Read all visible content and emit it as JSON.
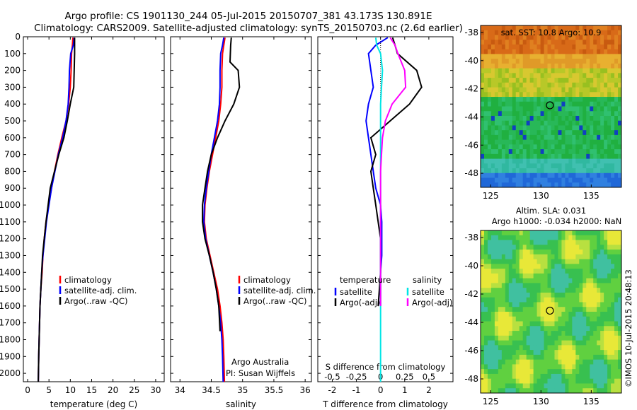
{
  "header": {
    "title_line1": "Argo profile: CS 1901130_244 05-Jul-2015 20150707_381 43.173S 130.891E",
    "title_line2": "Climatology: CARS2009. Satellite-adjusted climatology: synTS_20150703.nc (2.6d earlier)"
  },
  "credits": {
    "argo_line1": "Argo Australia",
    "argo_line2": "PI: Susan Wijffels",
    "imos": "©IMOS 10-Jul-2015 20:48:13"
  },
  "depth_ticks": [
    0,
    100,
    200,
    300,
    400,
    500,
    600,
    700,
    800,
    900,
    1000,
    1100,
    1200,
    1300,
    1400,
    1500,
    1600,
    1700,
    1800,
    1900,
    2000
  ],
  "colors": {
    "climatology": "#ff0000",
    "satellite": "#0000ff",
    "argo": "#000000",
    "cyan": "#00e5e5",
    "magenta": "#ff00ff"
  },
  "chart_data": [
    {
      "id": "temperature",
      "type": "line",
      "xlabel": "temperature (deg C)",
      "ylabel": "",
      "xlim": [
        -1,
        32
      ],
      "ylim": [
        2050,
        0
      ],
      "xticks": [
        0,
        5,
        10,
        15,
        20,
        25,
        30
      ],
      "legend": [
        "climatology",
        "satellite-adj. clim.",
        "Argo(..raw -QC)"
      ],
      "series": [
        {
          "name": "climatology",
          "color": "#ff0000",
          "x": [
            10.6,
            10.5,
            10.3,
            10.2,
            10.0,
            9.6,
            9.0,
            8.0,
            7.1,
            6.3,
            5.6,
            4.9,
            4.3,
            3.9,
            3.6,
            3.4,
            3.1,
            2.9,
            2.8,
            2.7,
            2.6,
            2.5
          ],
          "y": [
            5,
            50,
            100,
            200,
            300,
            400,
            500,
            600,
            700,
            800,
            900,
            1000,
            1100,
            1200,
            1300,
            1400,
            1500,
            1600,
            1700,
            1800,
            1900,
            2050
          ]
        },
        {
          "name": "satellite-adj. clim.",
          "color": "#0000ff",
          "x": [
            10.9,
            10.7,
            10.1,
            9.8,
            9.7,
            9.5,
            9.0,
            8.2,
            7.2,
            6.4,
            5.6,
            5.0,
            4.4,
            4.0,
            3.6,
            3.3,
            3.1,
            2.9,
            2.8,
            2.7,
            2.6,
            2.5
          ],
          "y": [
            5,
            50,
            100,
            200,
            300,
            400,
            500,
            600,
            700,
            800,
            900,
            1000,
            1100,
            1200,
            1300,
            1400,
            1500,
            1600,
            1700,
            1800,
            1900,
            2050
          ]
        },
        {
          "name": "Argo(..raw -QC)",
          "color": "#000000",
          "x": [
            11.0,
            11.0,
            11.0,
            10.9,
            10.8,
            10.0,
            9.3,
            8.5,
            7.3,
            6.3,
            5.3,
            4.8,
            4.3,
            3.9,
            3.5,
            3.3,
            3.1,
            2.9,
            2.8,
            2.7,
            2.6,
            2.5
          ],
          "y": [
            5,
            50,
            100,
            200,
            300,
            400,
            500,
            600,
            700,
            800,
            900,
            1000,
            1100,
            1200,
            1300,
            1400,
            1500,
            1600,
            1700,
            1800,
            1900,
            2050
          ]
        }
      ]
    },
    {
      "id": "salinity",
      "type": "line",
      "xlabel": "salinity",
      "ylabel": "",
      "xlim": [
        33.85,
        36.1
      ],
      "ylim": [
        2050,
        0
      ],
      "xticks": [
        34,
        34.5,
        35,
        35.5,
        36
      ],
      "legend": [
        "climatology",
        "satellite-adj. clim.",
        "Argo(..raw -QC)"
      ],
      "series": [
        {
          "name": "climatology",
          "color": "#ff0000",
          "x": [
            34.72,
            34.7,
            34.68,
            34.67,
            34.67,
            34.65,
            34.62,
            34.57,
            34.52,
            34.47,
            34.43,
            34.4,
            34.39,
            34.42,
            34.48,
            34.54,
            34.6,
            34.64,
            34.67,
            34.69,
            34.7,
            34.71
          ],
          "y": [
            5,
            50,
            100,
            200,
            300,
            400,
            500,
            600,
            700,
            800,
            900,
            1000,
            1100,
            1200,
            1300,
            1400,
            1500,
            1600,
            1700,
            1800,
            1900,
            2050
          ]
        },
        {
          "name": "satellite-adj. clim.",
          "color": "#0000ff",
          "x": [
            34.7,
            34.68,
            34.65,
            34.64,
            34.64,
            34.63,
            34.6,
            34.55,
            34.5,
            34.46,
            34.42,
            34.39,
            34.38,
            34.41,
            34.47,
            34.53,
            34.58,
            34.62,
            34.65,
            34.67,
            34.68,
            34.69
          ],
          "y": [
            5,
            50,
            100,
            200,
            300,
            400,
            500,
            600,
            700,
            800,
            900,
            1000,
            1100,
            1200,
            1300,
            1400,
            1500,
            1600,
            1700,
            1800,
            1900,
            2050
          ]
        },
        {
          "name": "Argo(..raw -QC)",
          "color": "#000000",
          "x": [
            34.82,
            34.81,
            34.8,
            34.93,
            34.95,
            34.86,
            34.72,
            34.6,
            34.5,
            34.44,
            34.4,
            34.36,
            34.36,
            34.4,
            34.47,
            34.53,
            34.58,
            34.62,
            34.64
          ],
          "y": [
            5,
            50,
            150,
            200,
            300,
            400,
            500,
            600,
            700,
            800,
            900,
            1000,
            1100,
            1200,
            1300,
            1400,
            1500,
            1600,
            1750
          ]
        }
      ]
    },
    {
      "id": "difference",
      "type": "line",
      "xlabel": "T difference from climatology",
      "xlabel2": "S difference from climatology",
      "xlim": [
        -2.6,
        3.0
      ],
      "ylim": [
        2050,
        0
      ],
      "xticks": [
        -2,
        -1,
        0,
        1,
        2
      ],
      "xticks2": [
        -0.5,
        -0.25,
        0,
        0.25,
        0.5
      ],
      "legend_temperature_title": "temperature",
      "legend_salinity_title": "salinity",
      "legend_temperature": [
        "satellite",
        "Argo(-adj)"
      ],
      "legend_salinity": [
        "satellite",
        "Argo(-adj)"
      ],
      "series": [
        {
          "name": "satellite",
          "group": "temperature",
          "color": "#0000ff",
          "x": [
            0.3,
            -0.2,
            -0.5,
            -0.4,
            -0.3,
            -0.5,
            -0.6,
            -0.5,
            -0.4,
            -0.3,
            -0.2,
            0,
            0.05,
            0.05,
            0.05,
            0,
            0
          ],
          "y": [
            5,
            50,
            100,
            200,
            300,
            400,
            500,
            600,
            700,
            800,
            900,
            1000,
            1100,
            1200,
            1300,
            1400,
            1600
          ]
        },
        {
          "name": "Argo(-adj)",
          "group": "temperature",
          "color": "#000000",
          "x": [
            0.5,
            0.6,
            0.7,
            1.5,
            1.7,
            1.2,
            0.4,
            -0.4,
            -0.2,
            -0.4,
            -0.3,
            -0.2,
            -0.1,
            0.0,
            0.0,
            0.0,
            -0.1
          ],
          "y": [
            5,
            50,
            100,
            200,
            300,
            400,
            500,
            600,
            700,
            800,
            900,
            1000,
            1100,
            1200,
            1300,
            1400,
            1600
          ]
        },
        {
          "name": "satellite",
          "group": "salinity",
          "color": "#00e5e5",
          "x": [
            -0.05,
            -0.04,
            0.0,
            0.02,
            0.01,
            0.0,
            0.0,
            0.0,
            0.0,
            0.0,
            0.0,
            0.0,
            0.0,
            0.0,
            0.0,
            0.0,
            0.0,
            0.0,
            0.0,
            0.0,
            0.0
          ],
          "y": [
            5,
            50,
            100,
            200,
            300,
            400,
            500,
            600,
            700,
            800,
            900,
            1000,
            1100,
            1200,
            1300,
            1400,
            1500,
            1600,
            1700,
            1800,
            2050
          ]
        },
        {
          "name": "Argo(-adj)",
          "group": "salinity",
          "color": "#ff00ff",
          "x": [
            0.1,
            0.15,
            0.18,
            0.25,
            0.26,
            0.12,
            0.05,
            0.02,
            0.01,
            0.0,
            0.0,
            0.0,
            0.0,
            0.0,
            0.0,
            0.0,
            0.0
          ],
          "y": [
            5,
            50,
            100,
            200,
            300,
            400,
            500,
            600,
            700,
            800,
            900,
            1000,
            1100,
            1200,
            1300,
            1400,
            1600
          ]
        }
      ]
    },
    {
      "id": "sst_map",
      "type": "heatmap",
      "title": "sat. SST: 10.8 Argo: 10.9",
      "xlim": [
        124,
        138
      ],
      "ylim": [
        -49,
        -37.5
      ],
      "xticks": [
        125,
        130,
        135
      ],
      "yticks": [
        -38,
        -40,
        -42,
        -44,
        -46,
        -48
      ],
      "marker": {
        "lon": 130.891,
        "lat": -43.173
      },
      "bands": [
        {
          "lat_min": -40,
          "lat_max": -37.5,
          "label": "warm",
          "color": "#e0701a"
        },
        {
          "lat_min": -42.5,
          "lat_max": -40,
          "label": "mid",
          "color": "#e0c030"
        },
        {
          "lat_min": -47.5,
          "lat_max": -42.5,
          "label": "cool",
          "color": "#20b030"
        },
        {
          "lat_min": -49,
          "lat_max": -47.5,
          "label": "cold",
          "color": "#2060d0"
        }
      ]
    },
    {
      "id": "sla_map",
      "type": "heatmap",
      "title": "Altim. SLA: 0.031",
      "title2": "Argo h1000: -0.034 h2000: NaN",
      "xlim": [
        124,
        138
      ],
      "ylim": [
        -49,
        -37.5
      ],
      "xticks": [
        125,
        130,
        135
      ],
      "yticks": [
        -38,
        -40,
        -42,
        -44,
        -46,
        -48
      ],
      "marker": {
        "lon": 130.891,
        "lat": -43.173
      }
    }
  ]
}
